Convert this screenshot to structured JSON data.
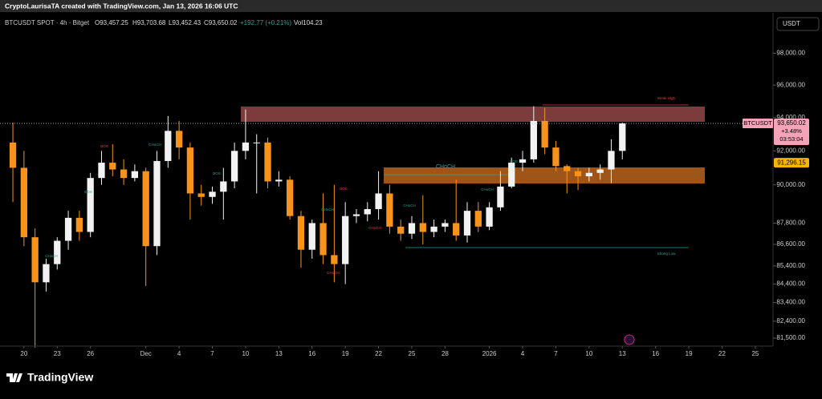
{
  "header": {
    "text": "CryptoLaurisaTA created with TradingView.com, Jan 13, 2026 16:06 UTC"
  },
  "legend": {
    "symbol": "BTCUSDT SPOT · 4h · Bitget",
    "open": "O93,457.25",
    "high": "H93,703.68",
    "low": "L93,452.43",
    "close": "C93,650.02",
    "change": "+192.77 (+0.21%)",
    "volume": "Vol104.23"
  },
  "currency": "USDT",
  "footer": {
    "brand": "TradingView"
  },
  "chart_data": {
    "type": "candlestick",
    "log_scale": true,
    "up_color": "#f2f2f2",
    "down_color": "#f7931a",
    "x": [
      -1,
      0,
      1,
      2,
      3,
      4,
      5,
      6,
      7,
      8,
      9,
      10,
      11,
      12,
      13,
      14,
      15,
      16,
      17,
      18,
      19,
      20,
      21,
      22,
      23,
      24,
      25,
      26,
      27,
      28,
      29,
      30,
      31,
      32,
      33,
      34,
      35,
      36,
      37,
      38,
      39,
      40,
      41,
      42,
      43,
      44,
      45,
      46,
      47,
      48,
      49,
      50,
      51,
      52,
      53,
      54
    ],
    "open": [
      92500,
      91000,
      87000,
      84500,
      85500,
      86800,
      88100,
      87300,
      90400,
      91300,
      90900,
      90400,
      90800,
      86500,
      91400,
      93200,
      92200,
      89500,
      89300,
      89600,
      90200,
      92000,
      92500,
      92500,
      90200,
      90300,
      88200,
      86300,
      87800,
      86000,
      85500,
      88200,
      88300,
      88600,
      89500,
      87600,
      87200,
      87800,
      87300,
      87600,
      87800,
      87100,
      88500,
      87600,
      88700,
      89900,
      91300,
      91500,
      93800,
      92200,
      91100,
      90800,
      90500,
      90700,
      90900,
      92000
    ],
    "high": [
      93700,
      92000,
      87500,
      85800,
      87000,
      88500,
      88500,
      90700,
      92000,
      92400,
      91500,
      91200,
      91000,
      92000,
      94100,
      93800,
      92500,
      90000,
      89900,
      91000,
      92500,
      94500,
      93000,
      92800,
      90800,
      90500,
      88500,
      88000,
      89500,
      90000,
      89000,
      88600,
      89000,
      90800,
      90000,
      88000,
      88200,
      89400,
      88000,
      88000,
      90300,
      89000,
      89000,
      89000,
      90800,
      91600,
      92000,
      94700,
      94600,
      92600,
      91200,
      91000,
      91000,
      91200,
      92700,
      93700
    ],
    "low": [
      89000,
      86500,
      81000,
      84000,
      85200,
      86300,
      86800,
      87000,
      90000,
      90500,
      90000,
      90200,
      84300,
      86000,
      91000,
      91500,
      88000,
      88800,
      88900,
      88000,
      89800,
      91500,
      89500,
      89800,
      89900,
      88000,
      85300,
      85800,
      85500,
      84500,
      84400,
      87800,
      87900,
      88000,
      87200,
      86800,
      86900,
      86600,
      87000,
      87300,
      86800,
      86700,
      87300,
      87400,
      88500,
      89800,
      90800,
      91300,
      91800,
      90800,
      89500,
      89700,
      90200,
      90300,
      90100,
      91500
    ],
    "close": [
      91000,
      87000,
      84500,
      85500,
      86800,
      88100,
      87300,
      90400,
      91300,
      90900,
      90400,
      90800,
      86500,
      91400,
      93200,
      92200,
      89500,
      89300,
      89600,
      90200,
      92000,
      92500,
      92500,
      90200,
      90300,
      88200,
      86300,
      87800,
      86000,
      85500,
      88200,
      88300,
      88600,
      89500,
      87600,
      87200,
      87800,
      87300,
      87600,
      87800,
      87100,
      88500,
      87600,
      88700,
      89900,
      91300,
      91500,
      93800,
      92200,
      91100,
      90800,
      90500,
      90700,
      90900,
      92000,
      93650
    ],
    "ylim": [
      81080,
      100600
    ],
    "yticks": [
      {
        "value": 98000,
        "label": "98,000.00"
      },
      {
        "value": 96000,
        "label": "96,000.00"
      },
      {
        "value": 94000,
        "label": "94,000.00"
      },
      {
        "value": 92000,
        "label": "92,000.00"
      },
      {
        "value": 90000,
        "label": "90,000.00"
      },
      {
        "value": 87800,
        "label": "87,800.00"
      },
      {
        "value": 86600,
        "label": "86,600.00"
      },
      {
        "value": 85400,
        "label": "85,400.00"
      },
      {
        "value": 84400,
        "label": "84,400.00"
      },
      {
        "value": 83400,
        "label": "83,400.00"
      },
      {
        "value": 82400,
        "label": "82,400.00"
      },
      {
        "value": 81500,
        "label": "81,500.00"
      }
    ],
    "xlim": [
      -1.8,
      67.6
    ],
    "xticks": [
      {
        "value": 0,
        "label": "20"
      },
      {
        "value": 3,
        "label": "23"
      },
      {
        "value": 6,
        "label": "26"
      },
      {
        "value": 11,
        "label": "Dec"
      },
      {
        "value": 14,
        "label": "4"
      },
      {
        "value": 17,
        "label": "7"
      },
      {
        "value": 20,
        "label": "10"
      },
      {
        "value": 23,
        "label": "13"
      },
      {
        "value": 26,
        "label": "16"
      },
      {
        "value": 29,
        "label": "19"
      },
      {
        "value": 32,
        "label": "22"
      },
      {
        "value": 35,
        "label": "25"
      },
      {
        "value": 38,
        "label": "28"
      },
      {
        "value": 42,
        "label": "2026"
      },
      {
        "value": 45,
        "label": "4"
      },
      {
        "value": 48,
        "label": "7"
      },
      {
        "value": 51,
        "label": "10"
      },
      {
        "value": 54,
        "label": "13"
      },
      {
        "value": 57,
        "label": "16"
      },
      {
        "value": 60,
        "label": "19"
      },
      {
        "value": 63,
        "label": "22"
      },
      {
        "value": 66,
        "label": "25"
      }
    ],
    "last_price": {
      "name": "BTCUSDT",
      "value": 93650.02,
      "label": "93,650.02",
      "change": "+3.48%",
      "countdown": "03:53:04"
    },
    "marked_price": {
      "value": 91296.15,
      "label": "91,296.15"
    },
    "annotations": [
      {
        "text": "CHoCH",
        "color": "#26a69a"
      },
      {
        "text": "Weak High",
        "color": "#f23645"
      },
      {
        "text": "Strong Low",
        "color": "#26a69a"
      },
      {
        "text": "BOS",
        "color": "#26a69a"
      },
      {
        "text": "BOS",
        "color": "#26a69a"
      },
      {
        "text": "CHoCH",
        "color": "#26a69a"
      },
      {
        "text": "CHoCH",
        "color": "#26a69a"
      },
      {
        "text": "CHoCH",
        "color": "#26a69a"
      },
      {
        "text": "CHoCH",
        "color": "#26a69a"
      },
      {
        "text": "CHoCH",
        "color": "#26a69a"
      },
      {
        "text": "BOS",
        "color": "#26a69a"
      },
      {
        "text": "BOS",
        "color": "#f23645"
      },
      {
        "text": "CHoCH",
        "color": "#f23645"
      },
      {
        "text": "CHoCH",
        "color": "#f23645"
      },
      {
        "text": "BOS",
        "color": "#f23645"
      }
    ]
  }
}
